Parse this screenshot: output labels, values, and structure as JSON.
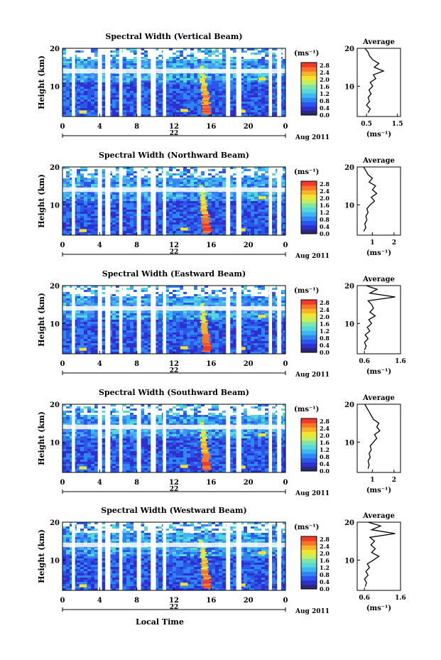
{
  "figure": {
    "date_label": "Aug 2011",
    "day_label": "22",
    "xlabel": "Local Time",
    "ylabel": "Height (km)",
    "colorbar_unit": "(ms⁻¹)",
    "avg_title": "Average",
    "avg_xlabel": "(ms⁻¹)"
  },
  "colors": {
    "colormap": [
      "#2a2a6e",
      "#2f2fd0",
      "#2a56ea",
      "#2f86f2",
      "#3fb5f2",
      "#55d8d8",
      "#7ee6a8",
      "#c8ee5a",
      "#f2e431",
      "#f7b42a",
      "#f7762a",
      "#f2392a"
    ],
    "background": "#ffffff",
    "line": "#000000"
  },
  "chart_data": [
    {
      "type": "heatmap",
      "title": "Spectral Width (Vertical Beam)",
      "x_ticks": [
        "0",
        "4",
        "8",
        "12",
        "16",
        "20",
        "0"
      ],
      "y_ticks": [
        "20",
        "10"
      ],
      "xlim": [
        0,
        24
      ],
      "ylim": [
        2,
        20
      ],
      "colorbar_ticks": [
        "2.8",
        "2.4",
        "2.0",
        "1.6",
        "1.2",
        "0.8",
        "0.4",
        "0.0"
      ],
      "avg": {
        "type": "line",
        "x_ticks": [
          "0.5",
          "1.5"
        ],
        "xlim": [
          0.2,
          1.6
        ],
        "ylim": [
          2,
          20
        ],
        "profile": [
          [
            0.55,
            3
          ],
          [
            0.62,
            4
          ],
          [
            0.5,
            5
          ],
          [
            0.6,
            6
          ],
          [
            0.55,
            7
          ],
          [
            0.65,
            8
          ],
          [
            0.58,
            9
          ],
          [
            0.7,
            10
          ],
          [
            0.62,
            11
          ],
          [
            0.8,
            12
          ],
          [
            0.72,
            13
          ],
          [
            1.05,
            14
          ],
          [
            0.75,
            15
          ],
          [
            0.9,
            16
          ],
          [
            0.7,
            17
          ],
          [
            0.6,
            18
          ],
          [
            0.55,
            19
          ],
          [
            0.45,
            20
          ]
        ]
      }
    },
    {
      "type": "heatmap",
      "title": "Spectral Width (Northward Beam)",
      "x_ticks": [
        "0",
        "4",
        "8",
        "12",
        "16",
        "20",
        "0"
      ],
      "y_ticks": [
        "20",
        "10"
      ],
      "xlim": [
        0,
        24
      ],
      "ylim": [
        2,
        20
      ],
      "colorbar_ticks": [
        "2.8",
        "2.4",
        "2.0",
        "1.6",
        "1.2",
        "0.8",
        "0.4",
        "0.0"
      ],
      "avg": {
        "type": "line",
        "x_ticks": [
          "1",
          "2"
        ],
        "xlim": [
          0.3,
          2.3
        ],
        "ylim": [
          2,
          20
        ],
        "profile": [
          [
            0.6,
            3
          ],
          [
            0.7,
            4
          ],
          [
            0.65,
            5
          ],
          [
            0.75,
            6
          ],
          [
            0.7,
            7
          ],
          [
            0.8,
            8
          ],
          [
            0.75,
            9
          ],
          [
            0.9,
            10
          ],
          [
            1.1,
            11
          ],
          [
            0.95,
            12
          ],
          [
            1.2,
            13
          ],
          [
            1.0,
            14
          ],
          [
            1.15,
            15
          ],
          [
            0.85,
            16
          ],
          [
            1.0,
            17
          ],
          [
            0.8,
            18
          ],
          [
            0.7,
            19
          ],
          [
            0.6,
            20
          ]
        ]
      }
    },
    {
      "type": "heatmap",
      "title": "Spectral Width (Eastward Beam)",
      "x_ticks": [
        "0",
        "4",
        "8",
        "12",
        "16",
        "20",
        "0"
      ],
      "y_ticks": [
        "20",
        "10"
      ],
      "xlim": [
        0,
        24
      ],
      "ylim": [
        2,
        20
      ],
      "colorbar_ticks": [
        "2.8",
        "2.4",
        "2.0",
        "1.6",
        "1.2",
        "0.8",
        "0.4",
        "0.0"
      ],
      "avg": {
        "type": "line",
        "x_ticks": [
          "0.6",
          "1.6"
        ],
        "xlim": [
          0.4,
          1.6
        ],
        "ylim": [
          2,
          20
        ],
        "profile": [
          [
            0.6,
            3
          ],
          [
            0.65,
            4
          ],
          [
            0.6,
            5
          ],
          [
            0.7,
            6
          ],
          [
            0.62,
            7
          ],
          [
            0.75,
            8
          ],
          [
            0.68,
            9
          ],
          [
            0.8,
            10
          ],
          [
            0.72,
            11
          ],
          [
            0.9,
            12
          ],
          [
            0.75,
            13
          ],
          [
            0.85,
            14
          ],
          [
            0.8,
            15
          ],
          [
            0.7,
            16
          ],
          [
            1.45,
            17
          ],
          [
            0.75,
            18
          ],
          [
            0.95,
            19
          ],
          [
            0.65,
            20
          ]
        ]
      }
    },
    {
      "type": "heatmap",
      "title": "Spectral Width (Southward Beam)",
      "x_ticks": [
        "0",
        "4",
        "8",
        "12",
        "16",
        "20",
        "0"
      ],
      "y_ticks": [
        "20",
        "10"
      ],
      "xlim": [
        0,
        24
      ],
      "ylim": [
        2,
        20
      ],
      "colorbar_ticks": [
        "2.8",
        "2.4",
        "2.0",
        "1.6",
        "1.2",
        "0.8",
        "0.4",
        "0.0"
      ],
      "avg": {
        "type": "line",
        "x_ticks": [
          "1",
          "2"
        ],
        "xlim": [
          0.3,
          2.3
        ],
        "ylim": [
          2,
          20
        ],
        "profile": [
          [
            0.8,
            3
          ],
          [
            0.85,
            4
          ],
          [
            0.8,
            5
          ],
          [
            0.9,
            6
          ],
          [
            0.85,
            7
          ],
          [
            0.95,
            8
          ],
          [
            0.9,
            9
          ],
          [
            1.05,
            10
          ],
          [
            1.2,
            11
          ],
          [
            1.1,
            12
          ],
          [
            1.35,
            13
          ],
          [
            1.2,
            14
          ],
          [
            1.3,
            15
          ],
          [
            1.05,
            16
          ],
          [
            0.95,
            17
          ],
          [
            0.85,
            18
          ],
          [
            0.75,
            19
          ],
          [
            0.65,
            20
          ]
        ]
      }
    },
    {
      "type": "heatmap",
      "title": "Spectral Width (Westward Beam)",
      "x_ticks": [
        "0",
        "4",
        "8",
        "12",
        "16",
        "20",
        "0"
      ],
      "y_ticks": [
        "20",
        "10"
      ],
      "xlim": [
        0,
        24
      ],
      "ylim": [
        2,
        20
      ],
      "colorbar_ticks": [
        "2.8",
        "2.4",
        "2.0",
        "1.6",
        "1.2",
        "0.8",
        "0.4",
        "0.0"
      ],
      "avg": {
        "type": "line",
        "x_ticks": [
          "0.6",
          "1.6"
        ],
        "xlim": [
          0.4,
          1.6
        ],
        "ylim": [
          2,
          20
        ],
        "profile": [
          [
            0.62,
            3
          ],
          [
            0.66,
            4
          ],
          [
            0.6,
            5
          ],
          [
            0.7,
            6
          ],
          [
            0.64,
            7
          ],
          [
            0.74,
            8
          ],
          [
            0.68,
            9
          ],
          [
            0.85,
            10
          ],
          [
            1.0,
            11
          ],
          [
            0.8,
            12
          ],
          [
            0.9,
            13
          ],
          [
            0.78,
            14
          ],
          [
            0.88,
            15
          ],
          [
            0.75,
            16
          ],
          [
            1.45,
            17
          ],
          [
            0.8,
            18
          ],
          [
            1.05,
            19
          ],
          [
            0.7,
            20
          ]
        ]
      }
    }
  ]
}
